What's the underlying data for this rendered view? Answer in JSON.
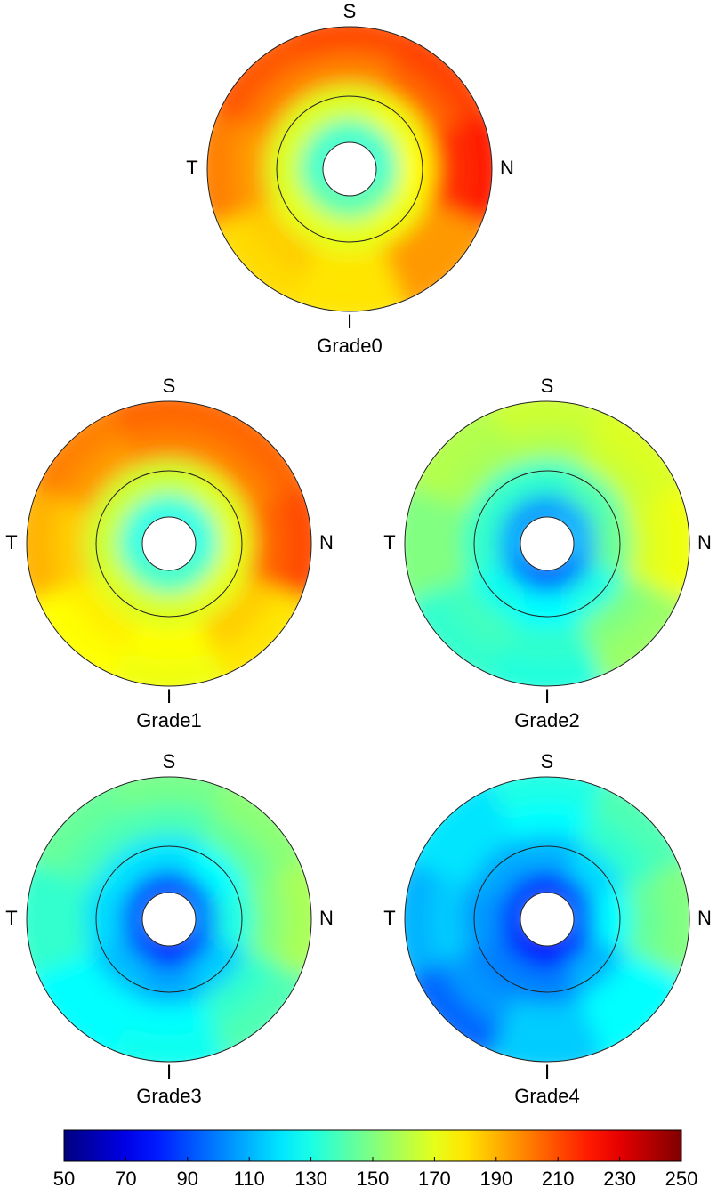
{
  "chart_data": {
    "type": "polar_heatmap",
    "direction_labels": {
      "top": "S",
      "left": "T",
      "right": "N",
      "bottom": "I"
    },
    "colormap": "jet",
    "colorbar": {
      "lim": [
        50,
        250
      ],
      "ticks": [
        50,
        70,
        90,
        110,
        130,
        150,
        170,
        190,
        210,
        230,
        250
      ]
    },
    "maps": [
      {
        "label": "Grade0",
        "values": [
          [
            135,
            135,
            135,
            140,
            140,
            140,
            135,
            135
          ],
          [
            168,
            172,
            175,
            172,
            170,
            170,
            168,
            168
          ],
          [
            200,
            205,
            215,
            195,
            180,
            185,
            195,
            200
          ],
          [
            210,
            212,
            220,
            195,
            180,
            182,
            200,
            208
          ]
        ]
      },
      {
        "label": "Grade1",
        "values": [
          [
            130,
            130,
            130,
            135,
            135,
            135,
            130,
            130
          ],
          [
            165,
            168,
            170,
            170,
            168,
            168,
            165,
            165
          ],
          [
            200,
            200,
            205,
            185,
            175,
            178,
            185,
            195
          ],
          [
            205,
            205,
            210,
            180,
            172,
            175,
            190,
            200
          ]
        ]
      },
      {
        "label": "Grade2",
        "values": [
          [
            105,
            108,
            110,
            100,
            95,
            100,
            108,
            105
          ],
          [
            135,
            140,
            145,
            130,
            125,
            128,
            135,
            135
          ],
          [
            160,
            165,
            168,
            150,
            135,
            138,
            150,
            158
          ],
          [
            165,
            168,
            172,
            155,
            132,
            135,
            150,
            160
          ]
        ]
      },
      {
        "label": "Grade3",
        "values": [
          [
            90,
            95,
            100,
            90,
            82,
            90,
            95,
            92
          ],
          [
            120,
            125,
            130,
            115,
            108,
            112,
            118,
            120
          ],
          [
            140,
            145,
            150,
            135,
            125,
            125,
            135,
            140
          ],
          [
            148,
            152,
            158,
            140,
            128,
            125,
            135,
            145
          ]
        ]
      },
      {
        "label": "Grade4",
        "values": [
          [
            85,
            90,
            95,
            85,
            75,
            82,
            88,
            88
          ],
          [
            110,
            118,
            125,
            110,
            100,
            100,
            105,
            108
          ],
          [
            125,
            135,
            145,
            125,
            115,
            105,
            115,
            120
          ],
          [
            130,
            140,
            150,
            125,
            115,
            95,
            110,
            120
          ]
        ]
      }
    ]
  }
}
